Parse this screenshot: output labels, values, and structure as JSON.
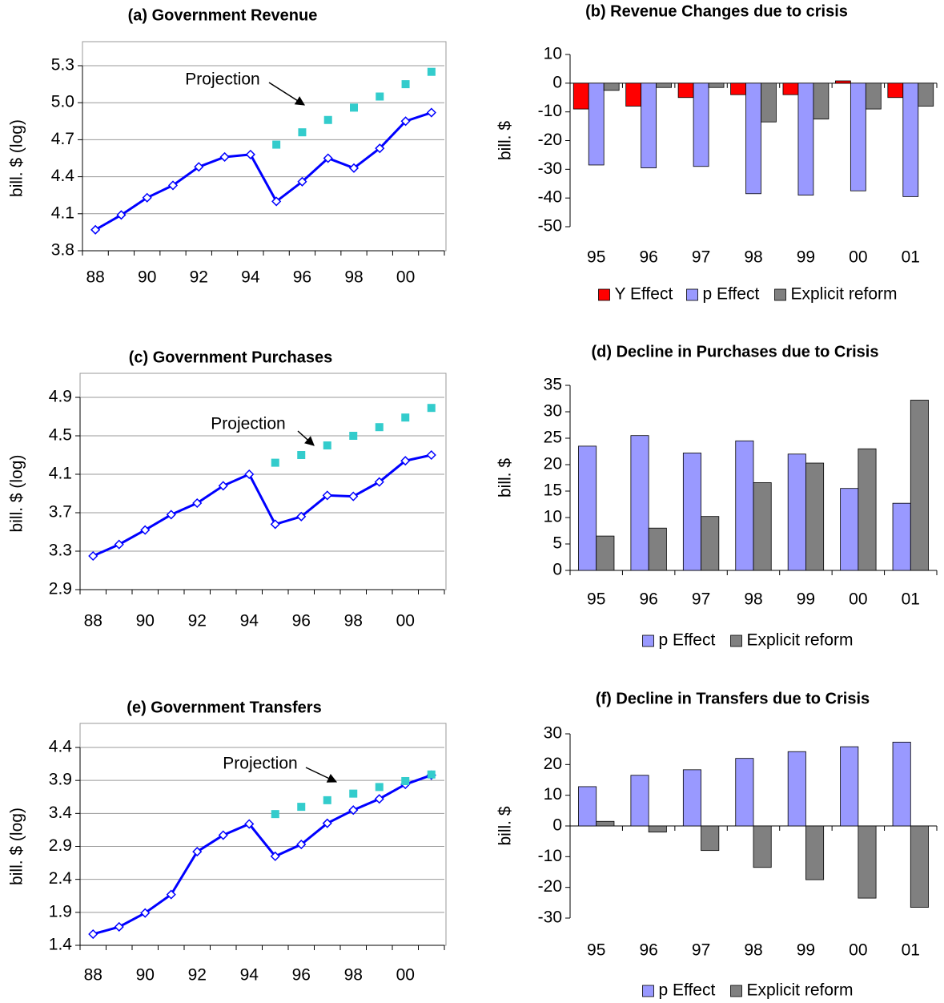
{
  "chart_data": [
    {
      "type": "line",
      "title": "(a) Government Revenue",
      "y_label": "bill. $ (log)",
      "annotation": "Projection",
      "categories": [
        "88",
        null,
        "90",
        null,
        "92",
        null,
        "94",
        null,
        "96",
        null,
        "98",
        null,
        "00",
        null
      ],
      "series": [
        {
          "color": "#0000ff",
          "marker": "diamond",
          "values": [
            3.97,
            4.09,
            4.23,
            4.33,
            4.48,
            4.56,
            4.58,
            4.2,
            4.36,
            4.55,
            4.47,
            4.63,
            4.85,
            4.92
          ]
        },
        {
          "color": "#33cccc",
          "marker": "square",
          "values": [
            null,
            null,
            null,
            null,
            null,
            null,
            null,
            4.66,
            4.76,
            4.86,
            4.96,
            5.05,
            5.15,
            5.25
          ]
        }
      ],
      "ylim": [
        3.8,
        5.3
      ],
      "yticks": [
        3.8,
        4.1,
        4.4,
        4.7,
        {
          "value": 5,
          "label": "5.0"
        },
        5.3
      ],
      "grid": true
    },
    {
      "type": "bar",
      "title": "(b) Revenue Changes due to crisis",
      "y_label": "bill. $",
      "categories": [
        "95",
        "96",
        "97",
        "98",
        "99",
        "00",
        "01"
      ],
      "series": [
        {
          "name": "Y Effect",
          "color": "#ff0000",
          "values": [
            -9,
            -8,
            -5,
            -4,
            -4,
            0.8,
            -5
          ]
        },
        {
          "name": "p Effect",
          "color": "#9999ff",
          "values": [
            -28.5,
            -29.5,
            -29,
            -38.5,
            -39,
            -37.5,
            -39.5
          ]
        },
        {
          "name": "Explicit reform",
          "color": "#808080",
          "values": [
            -2.5,
            -1.5,
            -1.5,
            -13.5,
            -12.5,
            -9,
            -8
          ]
        }
      ],
      "ylim": [
        -50,
        10
      ],
      "yticks": [
        -50,
        -40,
        -30,
        -20,
        -10,
        0,
        10
      ],
      "legend": "bottom"
    },
    {
      "type": "line",
      "title": "(c) Government Purchases",
      "y_label": "bill. $ (log)",
      "annotation": "Projection",
      "categories": [
        "88",
        null,
        "90",
        null,
        "92",
        null,
        "94",
        null,
        "96",
        null,
        "98",
        null,
        "00",
        null
      ],
      "series": [
        {
          "color": "#0000ff",
          "marker": "diamond",
          "values": [
            3.25,
            3.37,
            3.52,
            3.68,
            3.8,
            3.98,
            4.1,
            3.58,
            3.66,
            3.88,
            3.87,
            4.02,
            4.24,
            4.3
          ]
        },
        {
          "color": "#33cccc",
          "marker": "square",
          "values": [
            null,
            null,
            null,
            null,
            null,
            null,
            null,
            4.22,
            4.3,
            4.4,
            4.5,
            4.59,
            4.69,
            4.79
          ]
        }
      ],
      "ylim": [
        2.9,
        4.9
      ],
      "yticks": [
        2.9,
        3.3,
        3.7,
        4.1,
        4.5,
        4.9
      ],
      "grid": true
    },
    {
      "type": "bar",
      "title": "(d) Decline in Purchases due to Crisis",
      "y_label": "bill. $",
      "categories": [
        "95",
        "96",
        "97",
        "98",
        "99",
        "00",
        "01"
      ],
      "series": [
        {
          "name": "p Effect",
          "color": "#9999ff",
          "values": [
            23.5,
            25.5,
            22.2,
            24.5,
            22,
            15.5,
            12.7
          ]
        },
        {
          "name": "Explicit reform",
          "color": "#808080",
          "values": [
            6.5,
            8,
            10.2,
            16.6,
            20.3,
            23,
            32.2
          ]
        }
      ],
      "ylim": [
        0,
        35
      ],
      "yticks": [
        0,
        5,
        10,
        15,
        20,
        25,
        30,
        35
      ],
      "legend": "bottom"
    },
    {
      "type": "line",
      "title": "(e) Government Transfers",
      "y_label": "bill. $ (log)",
      "annotation": "Projection",
      "categories": [
        "88",
        null,
        "90",
        null,
        "92",
        null,
        "94",
        null,
        "96",
        null,
        "98",
        null,
        "00",
        null
      ],
      "series": [
        {
          "color": "#0000ff",
          "marker": "diamond",
          "values": [
            1.57,
            1.68,
            1.89,
            2.17,
            2.82,
            3.07,
            3.24,
            2.75,
            2.93,
            3.25,
            3.45,
            3.62,
            3.84,
            3.98
          ]
        },
        {
          "color": "#33cccc",
          "marker": "square",
          "values": [
            null,
            null,
            null,
            null,
            null,
            null,
            null,
            3.39,
            3.5,
            3.6,
            3.7,
            3.8,
            3.89,
            3.99
          ]
        }
      ],
      "ylim": [
        1.4,
        4.4
      ],
      "yticks": [
        1.4,
        1.9,
        2.4,
        2.9,
        3.4,
        3.9,
        4.4
      ],
      "grid": true
    },
    {
      "type": "bar",
      "title": "(f) Decline in Transfers due to Crisis",
      "y_label": "bill. $",
      "categories": [
        "95",
        "96",
        "97",
        "98",
        "99",
        "00",
        "01"
      ],
      "series": [
        {
          "name": "p Effect",
          "color": "#9999ff",
          "values": [
            12.8,
            16.5,
            18.3,
            22,
            24.2,
            25.8,
            27.3
          ]
        },
        {
          "name": "Explicit reform",
          "color": "#808080",
          "values": [
            1.5,
            -2,
            -8,
            -13.5,
            -17.5,
            -23.5,
            -26.5
          ]
        }
      ],
      "ylim": [
        -30,
        30
      ],
      "yticks": [
        -30,
        -20,
        -10,
        0,
        10,
        20,
        30
      ],
      "legend": "bottom"
    }
  ]
}
